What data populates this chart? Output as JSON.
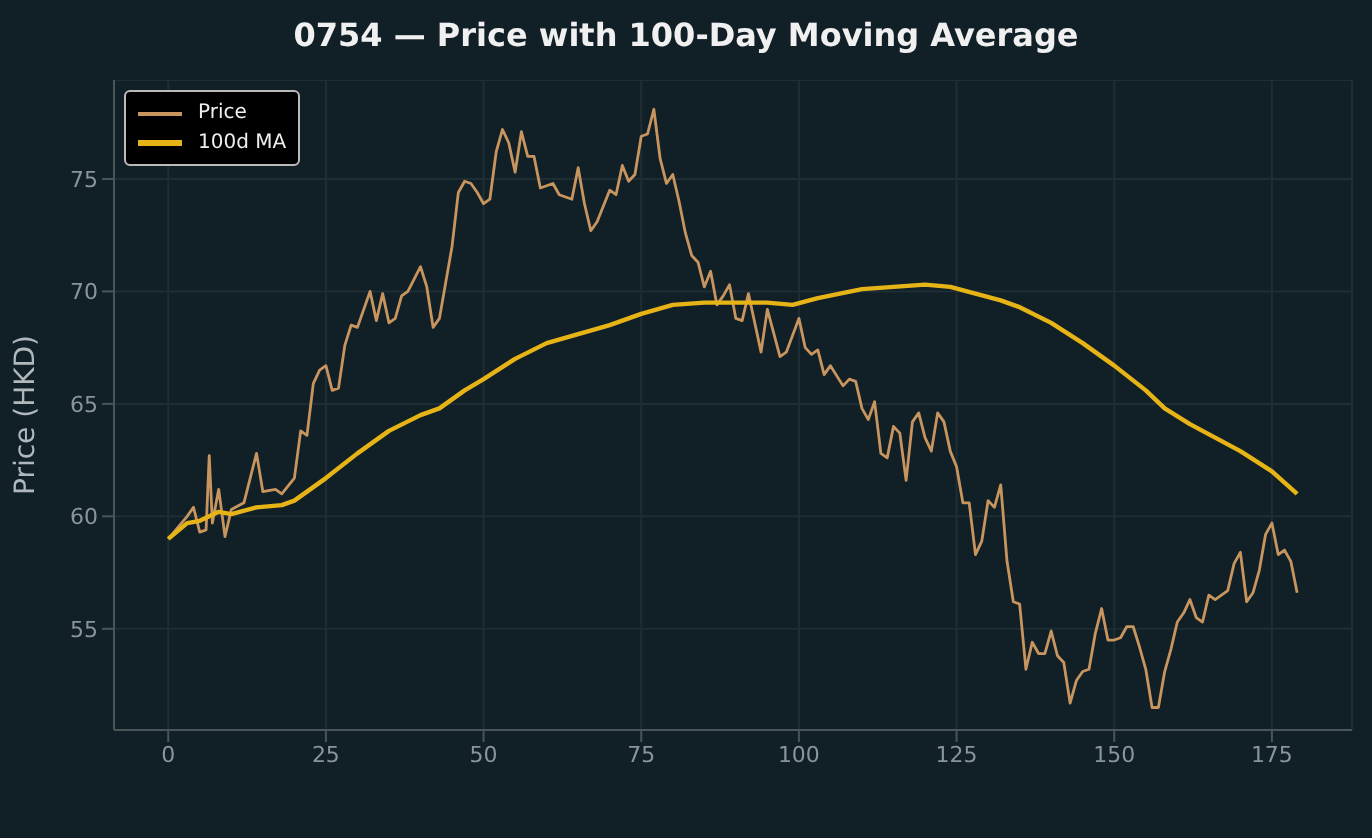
{
  "chart_data": {
    "type": "line",
    "title": "0754 — Price with 100-Day Moving Average",
    "ylabel": "Price (HKD)",
    "xlim": [
      -8.6,
      187.7
    ],
    "xticks": [
      0,
      25,
      50,
      75,
      100,
      125,
      150,
      175
    ],
    "ylim": [
      50.5,
      79.4
    ],
    "yticks": [
      55,
      60,
      65,
      70,
      75
    ],
    "grid": true,
    "legend": "top left",
    "series": [
      {
        "name": "Price",
        "color": "#c8955f",
        "x": [
          0,
          3,
          4,
          5,
          6,
          6.5,
          7,
          8,
          9,
          10,
          12,
          14,
          15,
          17,
          18,
          20,
          21,
          22,
          23,
          24,
          25,
          26,
          27,
          28,
          29,
          30,
          32,
          33,
          34,
          35,
          36,
          37,
          38,
          40,
          41,
          42,
          43,
          45,
          46,
          47,
          48,
          49,
          50,
          51,
          52,
          53,
          54,
          55,
          56,
          57,
          58,
          59,
          61,
          62,
          64,
          65,
          66,
          67,
          68,
          70,
          71,
          72,
          73,
          74,
          75,
          76,
          77,
          78,
          79,
          80,
          81,
          82,
          83,
          84,
          85,
          86,
          87,
          88,
          89,
          90,
          91,
          92,
          94,
          95,
          97,
          98,
          100,
          101,
          102,
          103,
          104,
          105,
          107,
          108,
          109,
          110,
          111,
          112,
          113,
          114,
          115,
          116,
          117,
          118,
          119,
          120,
          121,
          122,
          123,
          124,
          125,
          126,
          127,
          128,
          129,
          130,
          131,
          132,
          133,
          134,
          135,
          136,
          137,
          138,
          139,
          140,
          141,
          142,
          143,
          144,
          145,
          146,
          147,
          148,
          149,
          150,
          151,
          152,
          153,
          154,
          155,
          156,
          157,
          158,
          159,
          160,
          161,
          162,
          163,
          164,
          165,
          166,
          167,
          168,
          169,
          170,
          171,
          172,
          173,
          174,
          175,
          176,
          177,
          178,
          179
        ],
        "values": [
          59.0,
          60.0,
          60.4,
          59.3,
          59.4,
          62.7,
          59.7,
          61.2,
          59.1,
          60.3,
          60.6,
          62.8,
          61.1,
          61.2,
          61.0,
          61.7,
          63.8,
          63.6,
          65.9,
          66.5,
          66.7,
          65.6,
          65.7,
          67.6,
          68.5,
          68.4,
          70.0,
          68.7,
          69.9,
          68.6,
          68.8,
          69.8,
          70.0,
          71.1,
          70.2,
          68.4,
          68.8,
          72.0,
          74.4,
          74.9,
          74.8,
          74.4,
          73.9,
          74.1,
          76.2,
          77.2,
          76.6,
          75.3,
          77.1,
          76.0,
          76.0,
          74.6,
          74.8,
          74.3,
          74.1,
          75.5,
          73.9,
          72.7,
          73.1,
          74.5,
          74.3,
          75.6,
          74.9,
          75.2,
          76.9,
          77.0,
          78.1,
          75.9,
          74.8,
          75.2,
          74.0,
          72.6,
          71.6,
          71.3,
          70.2,
          70.9,
          69.4,
          69.8,
          70.3,
          68.8,
          68.7,
          69.9,
          67.3,
          69.2,
          67.1,
          67.3,
          68.8,
          67.5,
          67.2,
          67.4,
          66.3,
          66.7,
          65.8,
          66.1,
          66.0,
          64.8,
          64.3,
          65.1,
          62.8,
          62.6,
          64.0,
          63.7,
          61.6,
          64.2,
          64.6,
          63.5,
          62.9,
          64.6,
          64.2,
          62.9,
          62.2,
          60.6,
          60.6,
          58.3,
          58.9,
          60.7,
          60.4,
          61.4,
          58.0,
          56.2,
          56.1,
          53.2,
          54.4,
          53.9,
          53.9,
          54.9,
          53.8,
          53.5,
          51.7,
          52.7,
          53.1,
          53.2,
          54.8,
          55.9,
          54.5,
          54.5,
          54.6,
          55.1,
          55.1,
          54.2,
          53.2,
          51.5,
          51.5,
          53.1,
          54.1,
          55.3,
          55.7,
          56.3,
          55.5,
          55.3,
          56.5,
          56.3,
          56.5,
          56.7,
          57.9,
          58.4,
          56.2,
          56.6,
          57.6,
          59.2,
          59.7,
          58.3,
          58.5,
          58.0,
          56.6
        ]
      },
      {
        "name": "100d MA",
        "color": "#e6b416",
        "x": [
          0,
          3,
          5,
          8,
          10,
          14,
          18,
          20,
          25,
          30,
          35,
          40,
          43,
          47,
          50,
          55,
          60,
          65,
          70,
          75,
          80,
          85,
          90,
          95,
          99,
          103,
          110,
          115,
          120,
          124,
          128,
          132,
          135,
          140,
          145,
          150,
          155,
          158,
          162,
          166,
          170,
          175,
          179
        ],
        "values": [
          59.0,
          59.7,
          59.8,
          60.2,
          60.1,
          60.4,
          60.5,
          60.7,
          61.7,
          62.8,
          63.8,
          64.5,
          64.8,
          65.6,
          66.1,
          67.0,
          67.7,
          68.1,
          68.5,
          69.0,
          69.4,
          69.5,
          69.5,
          69.5,
          69.4,
          69.7,
          70.1,
          70.2,
          70.3,
          70.2,
          69.9,
          69.6,
          69.3,
          68.6,
          67.7,
          66.7,
          65.6,
          64.8,
          64.1,
          63.5,
          62.9,
          62.0,
          61.0
        ]
      }
    ]
  }
}
